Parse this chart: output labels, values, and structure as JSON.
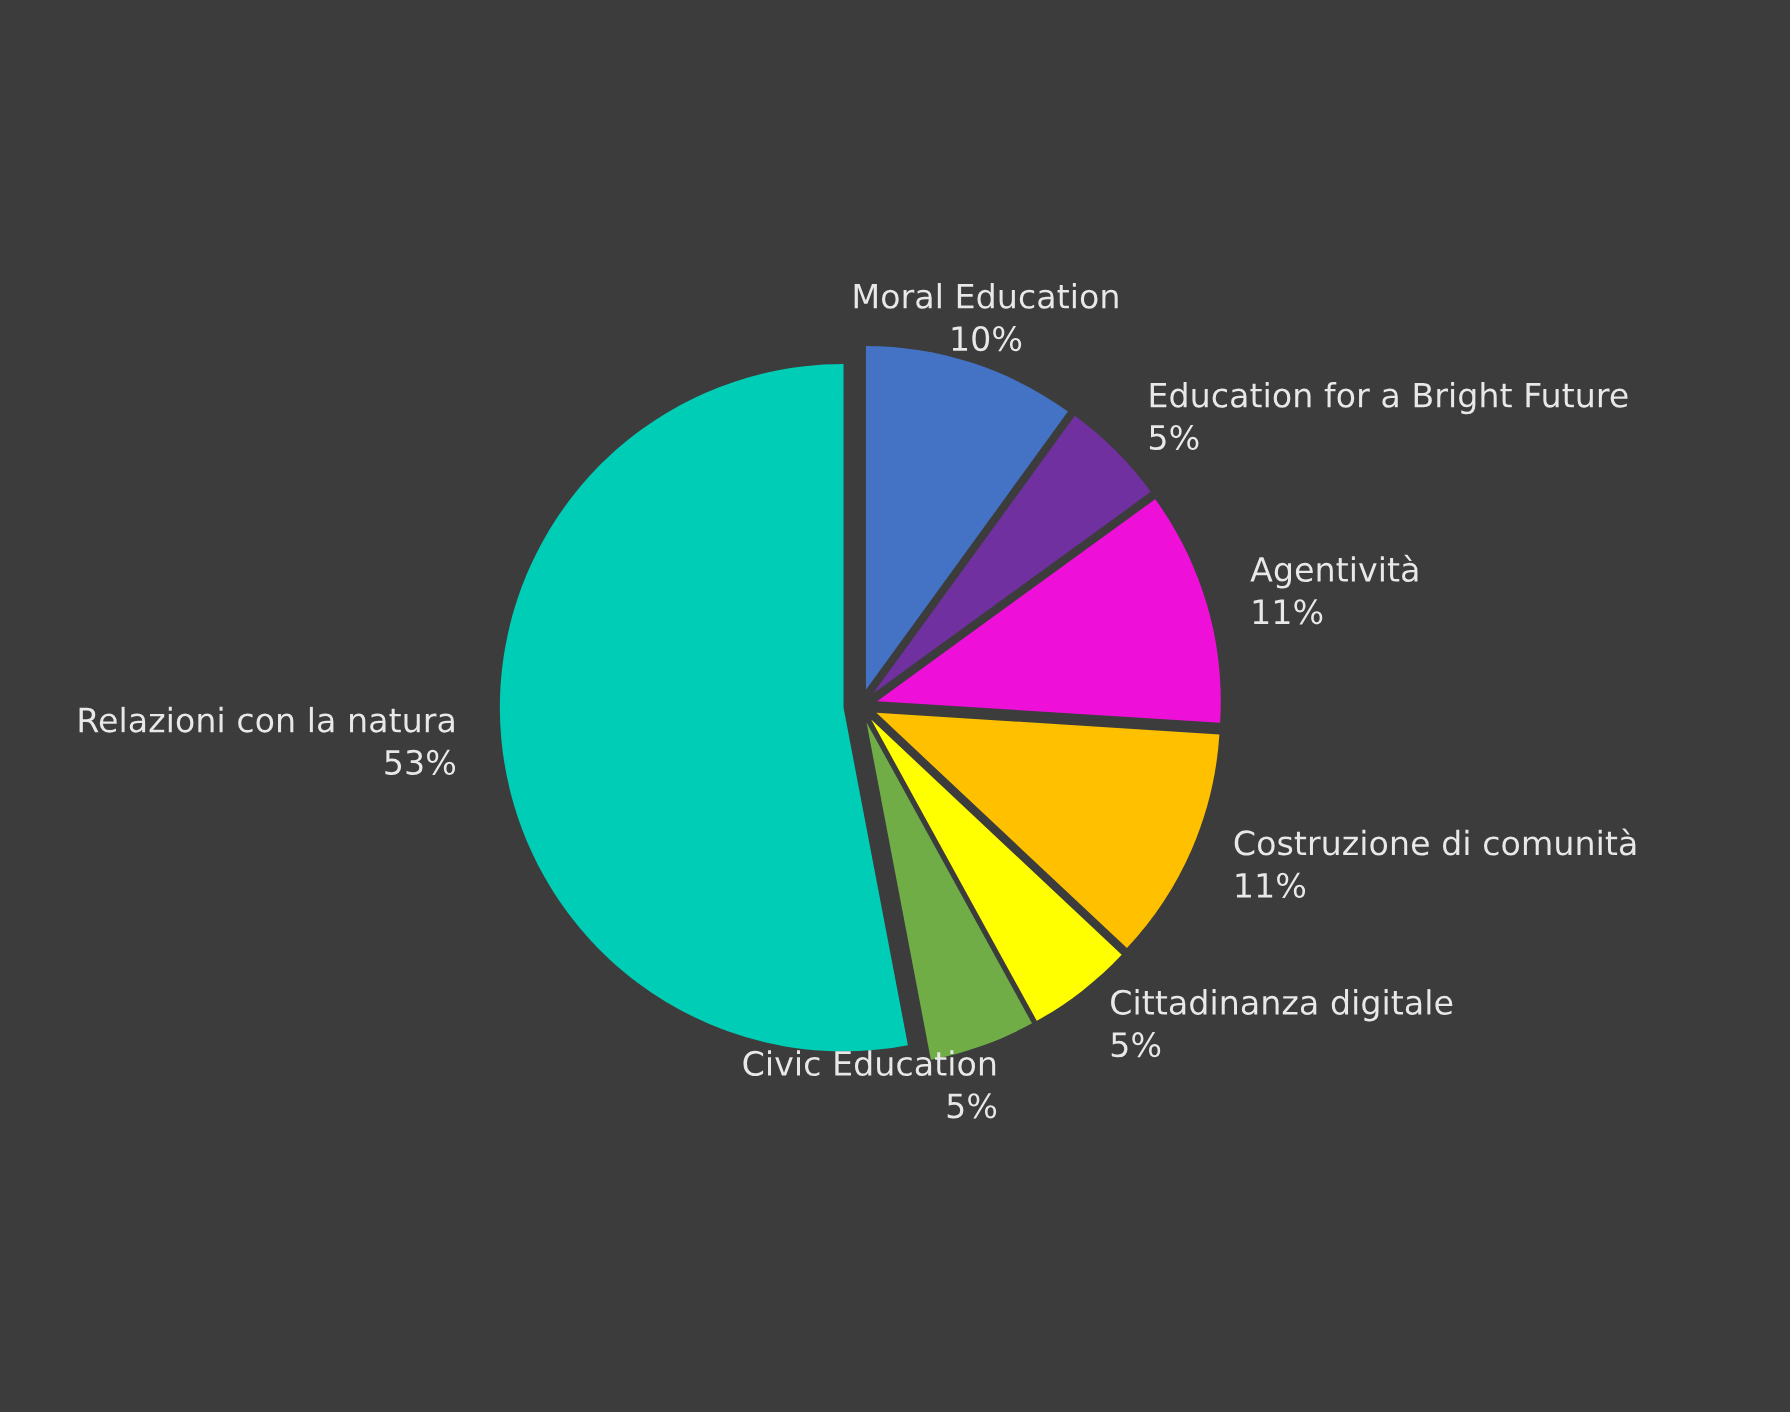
{
  "chart_data": {
    "type": "pie",
    "categories": [
      "Moral Education",
      "Education for a Bright Future",
      "Agentività",
      "Costruzione di comunità",
      "Cittadinanza digitale",
      "Civic Education",
      "Relazioni con la natura"
    ],
    "values": [
      10,
      5,
      11,
      11,
      5,
      5,
      53
    ],
    "value_labels": [
      "10%",
      "5%",
      "11%",
      "11%",
      "5%",
      "5%",
      "53%"
    ],
    "colors": [
      "#4472c4",
      "#7030a0",
      "#ee10d8",
      "#ffc000",
      "#ffff00",
      "#70ad47",
      "#00cdb5"
    ],
    "legend": false
  }
}
